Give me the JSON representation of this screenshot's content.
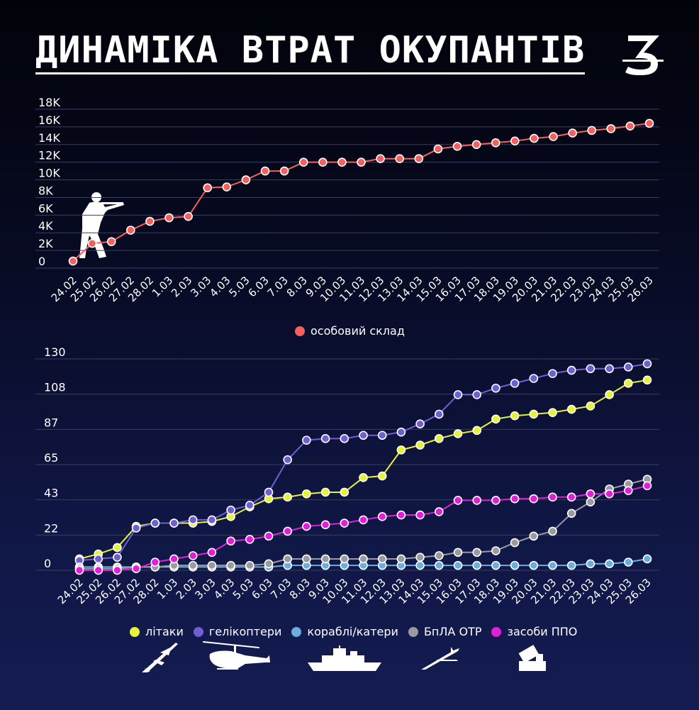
{
  "header": {
    "title": "ДИНАМІКА ВТРАТ ОКУПАНТІВ",
    "logo_icon": "logo-3-icon"
  },
  "chart_data": [
    {
      "type": "line",
      "categories": [
        "24.02",
        "25.02",
        "26.02",
        "27.02",
        "28.02",
        "1.03",
        "2.03",
        "3.03",
        "4.03",
        "5.03",
        "6.03",
        "7.03",
        "8.03",
        "9.03",
        "10.03",
        "11.03",
        "12.03",
        "13.03",
        "14.03",
        "15.03",
        "16.03",
        "17.03",
        "18.03",
        "19.03",
        "20.03",
        "21.03",
        "22.03",
        "23.03",
        "24.03",
        "25.03",
        "26.03"
      ],
      "series": [
        {
          "name": "особовий склад",
          "color": "#f26060",
          "values": [
            800,
            2800,
            3000,
            4300,
            5300,
            5700,
            5850,
            9100,
            9200,
            10000,
            11000,
            11000,
            12000,
            12000,
            12000,
            12000,
            12400,
            12400,
            12400,
            13500,
            13800,
            14000,
            14200,
            14400,
            14700,
            14900,
            15300,
            15600,
            15800,
            16100,
            16400
          ]
        }
      ],
      "y_ticks": [
        "0",
        "2K",
        "4K",
        "6K",
        "8K",
        "10K",
        "12K",
        "14K",
        "16K",
        "18K"
      ],
      "ylim": [
        0,
        18000
      ],
      "grid": true,
      "legend": "bottom-center"
    },
    {
      "type": "line",
      "categories": [
        "24.02",
        "25.02",
        "26.02",
        "27.02",
        "28.02",
        "1.03",
        "2.03",
        "3.03",
        "4.03",
        "5.03",
        "6.03",
        "7.03",
        "8.03",
        "9.03",
        "10.03",
        "11.03",
        "12.03",
        "13.03",
        "14.03",
        "15.03",
        "16.03",
        "17.03",
        "18.03",
        "19.03",
        "20.03",
        "21.03",
        "22.03",
        "23.03",
        "24.03",
        "25.03",
        "26.03"
      ],
      "series": [
        {
          "name": "літаки",
          "color": "#e6f23a",
          "values": [
            7,
            10,
            14,
            27,
            29,
            29,
            29,
            30,
            33,
            39,
            44,
            45,
            47,
            48,
            48,
            57,
            58,
            74,
            77,
            81,
            84,
            86,
            93,
            95,
            96,
            97,
            99,
            101,
            108,
            115,
            117
          ]
        },
        {
          "name": "гелікоптери",
          "color": "#6e5fd3",
          "values": [
            6,
            7,
            8,
            26,
            29,
            29,
            31,
            31,
            37,
            40,
            48,
            68,
            80,
            81,
            81,
            83,
            83,
            85,
            90,
            96,
            108,
            108,
            112,
            115,
            118,
            121,
            123,
            124,
            124,
            125,
            127
          ]
        },
        {
          "name": "кораблі/катери",
          "color": "#6aaee0",
          "values": [
            2,
            2,
            2,
            2,
            2,
            2,
            2,
            2,
            2,
            2,
            2,
            3,
            3,
            3,
            3,
            3,
            3,
            3,
            3,
            3,
            3,
            3,
            3,
            3,
            3,
            3,
            3,
            4,
            4,
            5,
            7
          ]
        },
        {
          "name": "БпЛА ОТР",
          "color": "#9a9aa2",
          "values": [
            1,
            1,
            1,
            2,
            2,
            3,
            3,
            3,
            3,
            3,
            4,
            7,
            7,
            7,
            7,
            7,
            7,
            7,
            8,
            9,
            11,
            11,
            12,
            17,
            21,
            24,
            35,
            42,
            50,
            53,
            56
          ]
        },
        {
          "name": "засоби ППО",
          "color": "#e020d8",
          "values": [
            0,
            0,
            0,
            1,
            5,
            7,
            9,
            11,
            18,
            19,
            21,
            24,
            27,
            28,
            29,
            31,
            33,
            34,
            34,
            36,
            43,
            43,
            43,
            44,
            44,
            45,
            45,
            47,
            47,
            49,
            52
          ]
        }
      ],
      "y_ticks": [
        "0",
        "22",
        "43",
        "65",
        "87",
        "108",
        "130"
      ],
      "ylim": [
        0,
        130
      ],
      "grid": true,
      "legend": "bottom-center"
    }
  ],
  "silhouettes": {
    "soldier": "soldier-icon",
    "plane": "plane-icon",
    "helicopter": "helicopter-icon",
    "ship": "ship-icon",
    "drone": "drone-icon",
    "air_defense": "air-defense-icon"
  }
}
